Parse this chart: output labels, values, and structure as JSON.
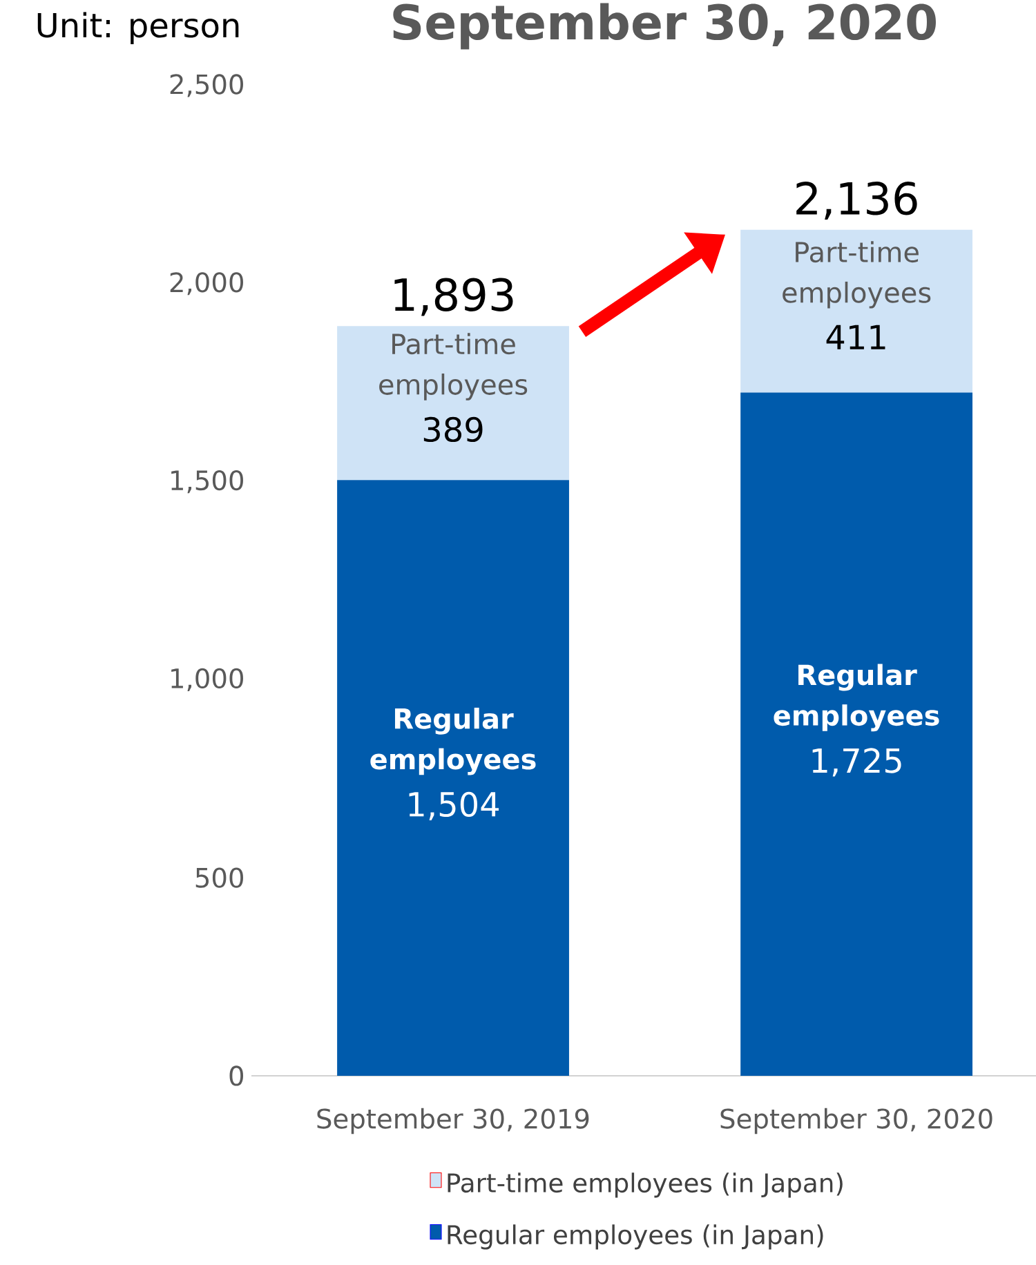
{
  "chart_data": {
    "type": "bar",
    "stacked": true,
    "title": "September 30, 2020",
    "ylabel": "Unit: person",
    "categories": [
      "September 30, 2019",
      "September 30, 2020"
    ],
    "series": [
      {
        "name": "Regular employees (in Japan)",
        "color": "#005bac",
        "values": [
          1504,
          1725
        ],
        "value_labels": [
          "1,504",
          "1,725"
        ]
      },
      {
        "name": "Part-time employees (in Japan)",
        "color": "#cfe3f6",
        "values": [
          389,
          411
        ],
        "value_labels": [
          "389",
          "411"
        ]
      }
    ],
    "totals": [
      "1,893",
      "2,136"
    ],
    "annotations": [
      "Regular employees",
      "Regular employees",
      "Part-time employees",
      "Part-time employees"
    ],
    "ylim": [
      0,
      2500
    ],
    "yticks": [
      0,
      {
        "value": 500,
        "label": "500"
      },
      {
        "value": 1000,
        "label": "1,000"
      },
      {
        "value": 1500,
        "label": "1,500"
      },
      {
        "value": 2000,
        "label": "2,000"
      },
      {
        "value": 2500,
        "label": "2,500"
      }
    ],
    "legend": "bottom",
    "grid": false
  }
}
